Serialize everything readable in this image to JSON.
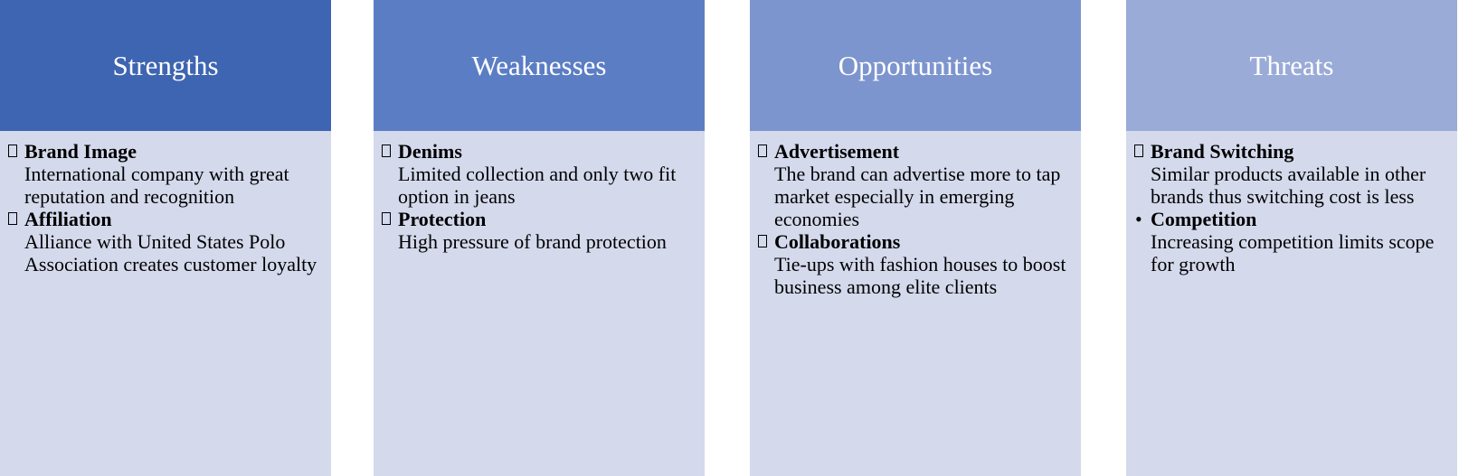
{
  "colors": {
    "strengths_header": "#3d65b1",
    "weaknesses_header": "#5b7dc4",
    "opportunities_header": "#7d95ce",
    "threats_header": "#9aabd7",
    "body_background": "#d4d9ec"
  },
  "columns": [
    {
      "title": "Strengths",
      "items": [
        {
          "bullet": "box",
          "title": "Brand Image",
          "description": "International company with great reputation and recognition"
        },
        {
          "bullet": "box",
          "title": "Affiliation",
          "description": "Alliance with United States Polo Association creates customer loyalty"
        }
      ]
    },
    {
      "title": "Weaknesses",
      "items": [
        {
          "bullet": "box",
          "title": "Denims",
          "description": "Limited collection and only two fit option in jeans"
        },
        {
          "bullet": "box",
          "title": "Protection",
          "description": "High pressure of brand protection"
        }
      ]
    },
    {
      "title": "Opportunities",
      "items": [
        {
          "bullet": "box",
          "title": "Advertisement",
          "description": "The brand can advertise more to tap market especially in emerging economies"
        },
        {
          "bullet": "box",
          "title": "Collaborations",
          "description": "Tie-ups with fashion houses to boost business among elite clients"
        }
      ]
    },
    {
      "title": "Threats",
      "items": [
        {
          "bullet": "box",
          "title": "Brand Switching",
          "description": "Similar products available in other brands thus switching cost is less"
        },
        {
          "bullet": "dot",
          "bullet_char": "•",
          "title": "Competition",
          "description": "Increasing competition limits scope for growth"
        }
      ]
    }
  ]
}
